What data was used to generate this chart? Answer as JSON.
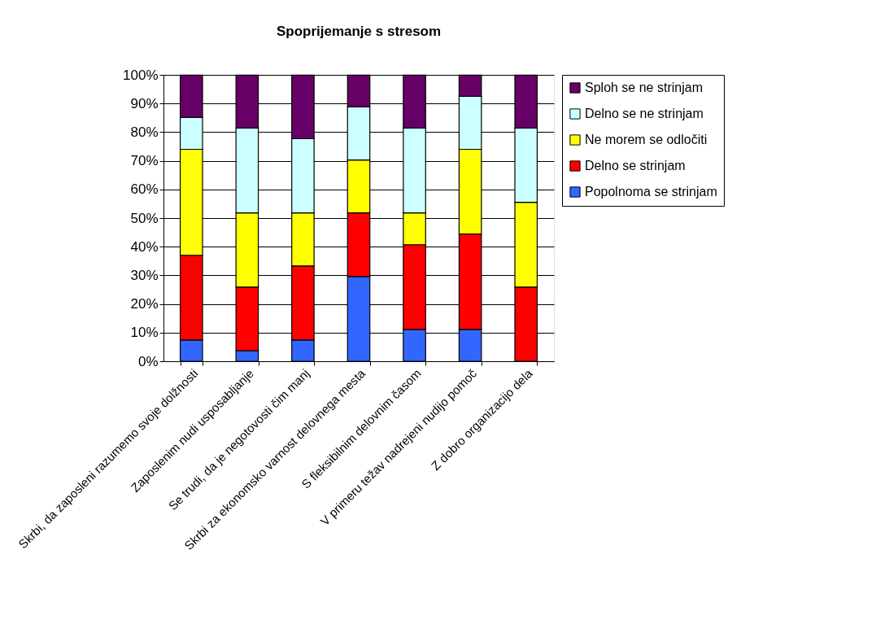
{
  "chart_data": {
    "type": "bar",
    "title": "Spoprijemanje s stresom",
    "stacked": true,
    "legend": "right",
    "grid": "y",
    "categories": [
      "Skrbi, da zaposleni razumemo svoje dolžnosti",
      "Zaposlenim nudi usposabljanje",
      "Se trudi, da je negotovosti čim manj",
      "Skrbi za ekonomsko varnost delovnega mesta",
      "S fleksibilnim delovnim časom",
      "V primeru težav nadrejeni nudijo pomoč",
      "Z dobro organizacijo dela"
    ],
    "series": [
      {
        "name": "Popolnoma se strinjam",
        "color": "#3366ff",
        "values": [
          7.4,
          3.7,
          7.4,
          29.6,
          11.1,
          11.1,
          0
        ]
      },
      {
        "name": "Delno se strinjam",
        "color": "#ff0000",
        "values": [
          29.6,
          22.2,
          25.9,
          22.2,
          29.6,
          33.3,
          25.9
        ]
      },
      {
        "name": "Ne morem  se odločiti",
        "color": "#ffff00",
        "values": [
          37.0,
          25.9,
          18.5,
          18.5,
          11.1,
          29.6,
          29.6
        ]
      },
      {
        "name": "Delno se  ne strinjam",
        "color": "#ccffff",
        "values": [
          11.1,
          29.6,
          25.9,
          18.5,
          29.6,
          18.5,
          25.9
        ]
      },
      {
        "name": "Sploh se ne strinjam",
        "color": "#660066",
        "values": [
          14.8,
          18.5,
          22.2,
          11.1,
          18.5,
          7.4,
          18.5
        ]
      }
    ],
    "ylim": [
      0,
      100
    ],
    "yticks": [
      {
        "value": 0,
        "label": "0%"
      },
      {
        "value": 10,
        "label": "10%"
      },
      {
        "value": 20,
        "label": "20%"
      },
      {
        "value": 30,
        "label": "30%"
      },
      {
        "value": 40,
        "label": "40%"
      },
      {
        "value": 50,
        "label": "50%"
      },
      {
        "value": 60,
        "label": "60%"
      },
      {
        "value": 70,
        "label": "70%"
      },
      {
        "value": 80,
        "label": "80%"
      },
      {
        "value": 90,
        "label": "90%"
      },
      {
        "value": 100,
        "label": "100%"
      }
    ]
  }
}
